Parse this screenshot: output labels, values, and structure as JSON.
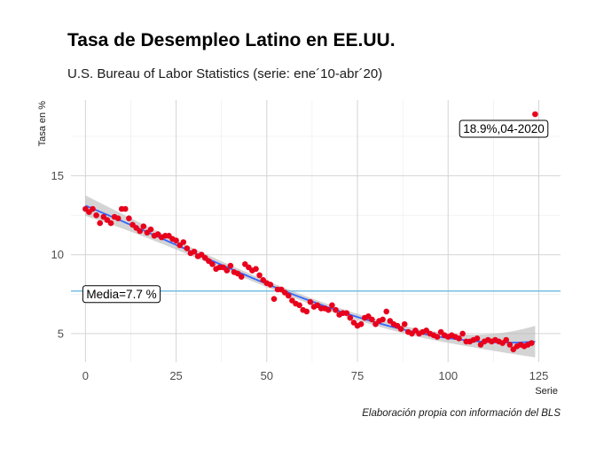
{
  "chart_data": {
    "type": "scatter",
    "title": "Tasa de Desempleo Latino en EE.UU.",
    "subtitle": "U.S. Bureau of Labor Statistics (serie: ene´10-abr´20)",
    "caption": "Elaboración propia con información del BLS",
    "xlabel": "Serie",
    "ylabel": "Tasa en %",
    "xlim": [
      -4,
      131
    ],
    "ylim": [
      3.2,
      19.8
    ],
    "x_ticks": [
      0,
      25,
      50,
      75,
      100,
      125
    ],
    "y_ticks": [
      5,
      10,
      15
    ],
    "grid": true,
    "colors": {
      "points": "#e8001c",
      "smooth": "#3366ff",
      "band": "#bdbdbd",
      "mean_line": "#79bde3"
    },
    "x": [
      0,
      1,
      2,
      3,
      4,
      5,
      6,
      7,
      8,
      9,
      10,
      11,
      12,
      13,
      14,
      15,
      16,
      17,
      18,
      19,
      20,
      21,
      22,
      23,
      24,
      25,
      26,
      27,
      28,
      29,
      30,
      31,
      32,
      33,
      34,
      35,
      36,
      37,
      38,
      39,
      40,
      41,
      42,
      43,
      44,
      45,
      46,
      47,
      48,
      49,
      50,
      51,
      52,
      53,
      54,
      55,
      56,
      57,
      58,
      59,
      60,
      61,
      62,
      63,
      64,
      65,
      66,
      67,
      68,
      69,
      70,
      71,
      72,
      73,
      74,
      75,
      76,
      77,
      78,
      79,
      80,
      81,
      82,
      83,
      84,
      85,
      86,
      87,
      88,
      89,
      90,
      91,
      92,
      93,
      94,
      95,
      96,
      97,
      98,
      99,
      100,
      101,
      102,
      103,
      104,
      105,
      106,
      107,
      108,
      109,
      110,
      111,
      112,
      113,
      114,
      115,
      116,
      117,
      118,
      119,
      120,
      121,
      122,
      123,
      124
    ],
    "y": [
      12.9,
      12.7,
      12.9,
      12.5,
      12.0,
      12.4,
      12.2,
      12.0,
      12.4,
      12.3,
      12.9,
      12.9,
      12.3,
      11.9,
      11.7,
      11.5,
      11.8,
      11.4,
      11.6,
      11.2,
      11.3,
      11.1,
      11.2,
      11.2,
      11.0,
      10.9,
      10.6,
      10.8,
      10.4,
      10.1,
      10.2,
      9.9,
      10.0,
      9.8,
      9.6,
      9.4,
      9.1,
      9.2,
      9.2,
      9.0,
      9.3,
      8.9,
      8.8,
      8.6,
      9.4,
      9.2,
      9.0,
      9.1,
      8.7,
      8.4,
      8.2,
      8.1,
      7.2,
      7.8,
      7.8,
      7.6,
      7.4,
      7.1,
      6.9,
      6.8,
      6.5,
      6.4,
      7.0,
      6.7,
      6.8,
      6.6,
      6.6,
      6.5,
      6.8,
      6.5,
      6.2,
      6.3,
      6.3,
      6.0,
      5.7,
      5.5,
      5.6,
      6.0,
      6.1,
      5.9,
      5.6,
      5.8,
      5.9,
      6.4,
      5.8,
      5.6,
      5.5,
      5.3,
      5.6,
      5.1,
      5.0,
      5.2,
      5.0,
      5.1,
      5.2,
      5.0,
      4.9,
      4.8,
      5.1,
      4.9,
      4.8,
      4.9,
      4.8,
      4.7,
      5.0,
      4.5,
      4.5,
      4.6,
      4.7,
      4.3,
      4.5,
      4.6,
      4.5,
      4.6,
      4.5,
      4.4,
      4.6,
      4.3,
      4.0,
      4.2,
      4.3,
      4.2,
      4.3,
      4.4,
      18.9
    ],
    "mean_line": {
      "value": 7.7,
      "label": "Media=7.7 %"
    },
    "annotation": {
      "x": 124,
      "y": 18.9,
      "label": "18.9%,04-2020"
    }
  }
}
